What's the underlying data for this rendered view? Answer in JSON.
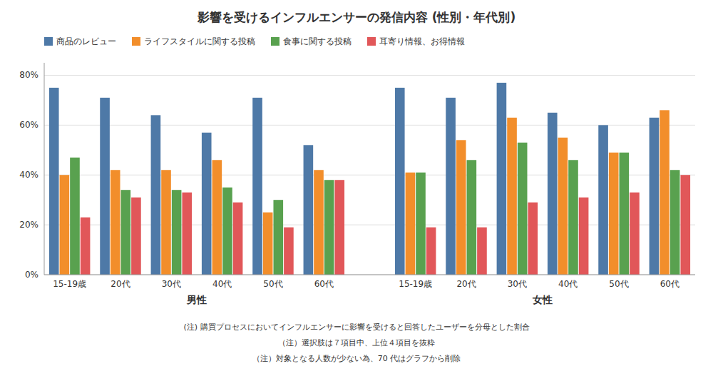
{
  "chart_data": {
    "type": "bar",
    "title": "影響を受けるインフルエンサーの発信内容 (性別・年代別)",
    "category_groups": [
      {
        "name": "男性",
        "categories": [
          "15-19歳",
          "20代",
          "30代",
          "40代",
          "50代",
          "60代"
        ]
      },
      {
        "name": "女性",
        "categories": [
          "15-19歳",
          "20代",
          "30代",
          "40代",
          "50代",
          "60代"
        ]
      }
    ],
    "series": [
      {
        "name": "商品のレビュー",
        "values": [
          75,
          71,
          64,
          57,
          71,
          52,
          75,
          71,
          77,
          65,
          60,
          63
        ]
      },
      {
        "name": "ライフスタイルに関する投稿",
        "values": [
          40,
          42,
          42,
          46,
          25,
          42,
          41,
          54,
          63,
          55,
          49,
          66
        ]
      },
      {
        "name": "食事に関する投稿",
        "values": [
          47,
          34,
          34,
          35,
          30,
          38,
          41,
          46,
          53,
          46,
          49,
          42
        ]
      },
      {
        "name": "耳寄り情報、お得情報",
        "values": [
          23,
          31,
          33,
          29,
          19,
          38,
          19,
          19,
          29,
          31,
          33,
          40
        ]
      }
    ],
    "ylim": [
      0,
      85
    ],
    "yticks": [
      {
        "value": 0,
        "label": "0%"
      },
      {
        "value": 20,
        "label": "20%"
      },
      {
        "value": 40,
        "label": "40%"
      },
      {
        "value": 60,
        "label": "60%"
      },
      {
        "value": 80,
        "label": "80%"
      }
    ],
    "grid": true,
    "legend": "top-left",
    "annotations": [
      "(注) 購買プロセスにおいてインフルエンサーに影響を受けると回答したユーザーを分母とした割合",
      "（注）選択肢は７項目中、上位４項目を抜粋",
      "（注）対象となる人数が少ない為、70 代はグラフから削除"
    ]
  }
}
